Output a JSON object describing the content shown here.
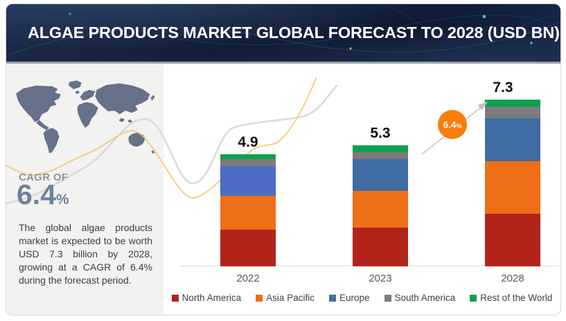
{
  "header": {
    "title": "ALGAE PRODUCTS MARKET GLOBAL FORECAST TO 2028 (USD BN)"
  },
  "sidebar": {
    "cagr_label": "CAGR OF",
    "cagr_value": "6.4",
    "cagr_unit": "%",
    "description": "The global algae products market is expected to be worth USD 7.3 billion by 2028, growing at a CAGR of 6.4% during the forecast period."
  },
  "chart_data": {
    "type": "bar",
    "stacked": true,
    "title": "Algae Products Market Global Forecast to 2028 (USD BN)",
    "unit": "USD BN",
    "categories": [
      "2022",
      "2023",
      "2028"
    ],
    "totals": [
      4.9,
      5.3,
      7.3
    ],
    "series": [
      {
        "name": "North America",
        "color": "#b2241a",
        "values": [
          1.6,
          1.7,
          2.3
        ]
      },
      {
        "name": "Asia Pacific",
        "color": "#ed6f17",
        "values": [
          1.5,
          1.6,
          2.3
        ]
      },
      {
        "name": "Europe",
        "color": "#3e6ca3",
        "colors_by_category": [
          "#4d6cc3",
          "#3e6ca3",
          "#3e6ca3"
        ],
        "values": [
          1.3,
          1.4,
          1.9
        ]
      },
      {
        "name": "South America",
        "color": "#7c7c7c",
        "values": [
          0.3,
          0.3,
          0.5
        ]
      },
      {
        "name": "Rest of the World",
        "color": "#0aa24b",
        "values": [
          0.2,
          0.3,
          0.3
        ]
      }
    ],
    "growth_label": {
      "value": "6.4",
      "unit": "%"
    },
    "ylim": [
      0,
      8
    ],
    "grid": false,
    "legend_position": "bottom"
  },
  "colors": {
    "header_bg": "#14203c",
    "sidebar_bg": "#f2f2f1",
    "map": "#66718a",
    "cagr_value": "#6f81a0",
    "growth_badge": "#f97d0b",
    "curve_gray": "#d8d8d8",
    "curve_yellow": "#f6c868",
    "axis": "#d9d9d9"
  }
}
